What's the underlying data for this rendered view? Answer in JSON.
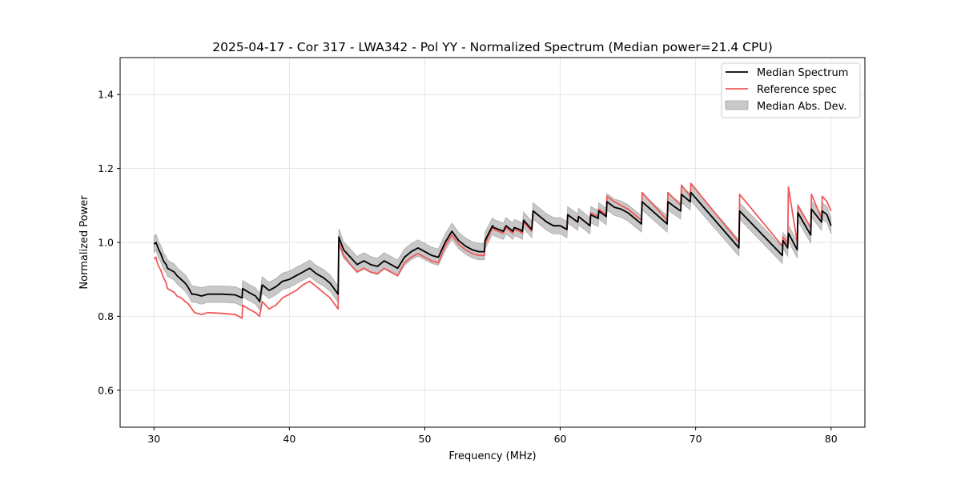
{
  "chart_data": {
    "type": "line",
    "title": "2025-04-17 - Cor 317 - LWA342 - Pol YY - Normalized Spectrum (Median power=21.4 CPU)",
    "xlabel": "Frequency (MHz)",
    "ylabel": "Normalized Power",
    "xlim": [
      27.5,
      82.5
    ],
    "ylim": [
      0.5,
      1.5
    ],
    "xticks": [
      30,
      40,
      50,
      60,
      70,
      80
    ],
    "yticks": [
      0.6,
      0.8,
      1.0,
      1.2,
      1.4
    ],
    "xtick_labels": [
      "30",
      "40",
      "50",
      "60",
      "70",
      "80"
    ],
    "ytick_labels": [
      "0.6",
      "0.8",
      "1.0",
      "1.2",
      "1.4"
    ],
    "grid": true,
    "legend_position": "top-right",
    "legend": [
      "Median Spectrum",
      "Reference spec",
      "Median Abs. Dev."
    ],
    "colors": {
      "median": "#000000",
      "reference": "#f05a5a",
      "mad_fill": "#c8c8c8",
      "mad_edge": "#a0a0a0"
    },
    "series": [
      {
        "name": "Median Spectrum",
        "x": [
          30.0,
          30.15,
          30.25,
          30.35,
          30.5,
          30.7,
          30.9,
          31.0,
          31.5,
          31.7,
          32.0,
          32.3,
          32.5,
          32.8,
          33.0,
          33.5,
          34.0,
          35.0,
          36.0,
          36.5,
          36.55,
          37.0,
          37.5,
          37.8,
          38.0,
          38.5,
          39.0,
          39.5,
          40.0,
          40.5,
          41.0,
          41.5,
          42.0,
          42.5,
          43.0,
          43.6,
          43.65,
          44.0,
          44.5,
          45.0,
          45.5,
          46.0,
          46.5,
          47.0,
          47.5,
          48.0,
          48.5,
          49.0,
          49.5,
          50.0,
          50.5,
          51.0,
          51.5,
          52.0,
          52.5,
          53.0,
          53.5,
          54.0,
          54.4,
          54.45,
          55.0,
          55.1,
          55.8,
          56.0,
          56.5,
          56.6,
          57.0,
          57.2,
          57.3,
          57.9,
          58.0,
          59.0,
          59.5,
          60.0,
          60.5,
          60.55,
          61.3,
          61.35,
          62.2,
          62.25,
          62.8,
          62.85,
          63.4,
          63.45,
          64.0,
          64.5,
          65.0,
          66.0,
          66.05,
          67.9,
          67.95,
          68.5,
          68.9,
          68.95,
          69.6,
          69.65,
          73.2,
          73.25,
          76.4,
          76.45,
          76.8,
          76.85,
          77.5,
          77.55,
          78.5,
          78.55,
          79.3,
          79.35,
          79.7,
          80.0
        ],
        "values": [
          0.995,
          1.0,
          0.99,
          0.98,
          0.97,
          0.95,
          0.94,
          0.93,
          0.92,
          0.91,
          0.9,
          0.89,
          0.88,
          0.86,
          0.86,
          0.855,
          0.86,
          0.86,
          0.858,
          0.85,
          0.875,
          0.865,
          0.855,
          0.84,
          0.885,
          0.87,
          0.88,
          0.895,
          0.9,
          0.91,
          0.92,
          0.93,
          0.915,
          0.905,
          0.89,
          0.86,
          1.015,
          0.98,
          0.96,
          0.94,
          0.95,
          0.94,
          0.935,
          0.95,
          0.94,
          0.93,
          0.96,
          0.975,
          0.985,
          0.975,
          0.965,
          0.96,
          1.0,
          1.03,
          1.005,
          0.99,
          0.98,
          0.975,
          0.975,
          1.005,
          1.045,
          1.04,
          1.03,
          1.045,
          1.03,
          1.04,
          1.035,
          1.03,
          1.06,
          1.035,
          1.085,
          1.055,
          1.045,
          1.045,
          1.035,
          1.075,
          1.055,
          1.07,
          1.045,
          1.075,
          1.065,
          1.085,
          1.07,
          1.11,
          1.095,
          1.09,
          1.08,
          1.05,
          1.11,
          1.05,
          1.11,
          1.095,
          1.085,
          1.13,
          1.11,
          1.135,
          0.985,
          1.085,
          0.965,
          1.005,
          0.985,
          1.025,
          0.98,
          1.08,
          1.02,
          1.09,
          1.055,
          1.085,
          1.075,
          1.045
        ]
      },
      {
        "name": "Reference spec",
        "x": [
          30.0,
          30.15,
          30.25,
          30.35,
          30.5,
          30.7,
          30.9,
          31.0,
          31.5,
          31.7,
          32.0,
          32.3,
          32.5,
          32.8,
          33.0,
          33.5,
          34.0,
          35.0,
          36.0,
          36.5,
          36.55,
          37.0,
          37.5,
          37.8,
          38.0,
          38.5,
          39.0,
          39.5,
          40.0,
          40.5,
          41.0,
          41.5,
          42.0,
          42.5,
          43.0,
          43.6,
          43.65,
          44.0,
          44.5,
          45.0,
          45.5,
          46.0,
          46.5,
          47.0,
          47.5,
          48.0,
          48.5,
          49.0,
          49.5,
          50.0,
          50.5,
          51.0,
          51.5,
          52.0,
          52.5,
          53.0,
          53.5,
          54.0,
          54.4,
          54.45,
          55.0,
          55.1,
          55.8,
          56.0,
          56.5,
          56.6,
          57.0,
          57.2,
          57.3,
          57.9,
          58.0,
          59.0,
          59.5,
          60.0,
          60.5,
          60.55,
          61.3,
          61.35,
          62.2,
          62.25,
          62.8,
          62.85,
          63.4,
          63.45,
          64.0,
          64.5,
          65.0,
          66.0,
          66.05,
          67.9,
          67.95,
          68.5,
          68.9,
          68.95,
          69.6,
          69.65,
          73.2,
          73.25,
          76.4,
          76.45,
          76.8,
          76.85,
          77.5,
          77.55,
          78.5,
          78.55,
          79.3,
          79.35,
          79.7,
          80.0
        ],
        "values": [
          0.955,
          0.96,
          0.945,
          0.935,
          0.925,
          0.905,
          0.89,
          0.875,
          0.865,
          0.855,
          0.85,
          0.84,
          0.835,
          0.82,
          0.81,
          0.805,
          0.81,
          0.808,
          0.805,
          0.795,
          0.83,
          0.82,
          0.81,
          0.8,
          0.84,
          0.82,
          0.83,
          0.85,
          0.86,
          0.87,
          0.885,
          0.895,
          0.88,
          0.865,
          0.85,
          0.82,
          1.0,
          0.965,
          0.94,
          0.92,
          0.93,
          0.92,
          0.915,
          0.93,
          0.92,
          0.91,
          0.945,
          0.96,
          0.97,
          0.96,
          0.95,
          0.945,
          0.99,
          1.02,
          0.995,
          0.98,
          0.97,
          0.965,
          0.965,
          0.995,
          1.04,
          1.035,
          1.025,
          1.04,
          1.025,
          1.035,
          1.03,
          1.025,
          1.055,
          1.03,
          1.085,
          1.055,
          1.045,
          1.045,
          1.035,
          1.075,
          1.055,
          1.07,
          1.045,
          1.08,
          1.07,
          1.09,
          1.075,
          1.125,
          1.11,
          1.1,
          1.09,
          1.06,
          1.135,
          1.06,
          1.135,
          1.115,
          1.1,
          1.155,
          1.125,
          1.16,
          1.0,
          1.13,
          0.99,
          1.015,
          0.995,
          1.15,
          1.0,
          1.1,
          1.04,
          1.13,
          1.065,
          1.125,
          1.11,
          1.085
        ]
      }
    ],
    "mad_band": {
      "name": "Median Abs. Dev.",
      "halfwidth": 0.022
    }
  }
}
